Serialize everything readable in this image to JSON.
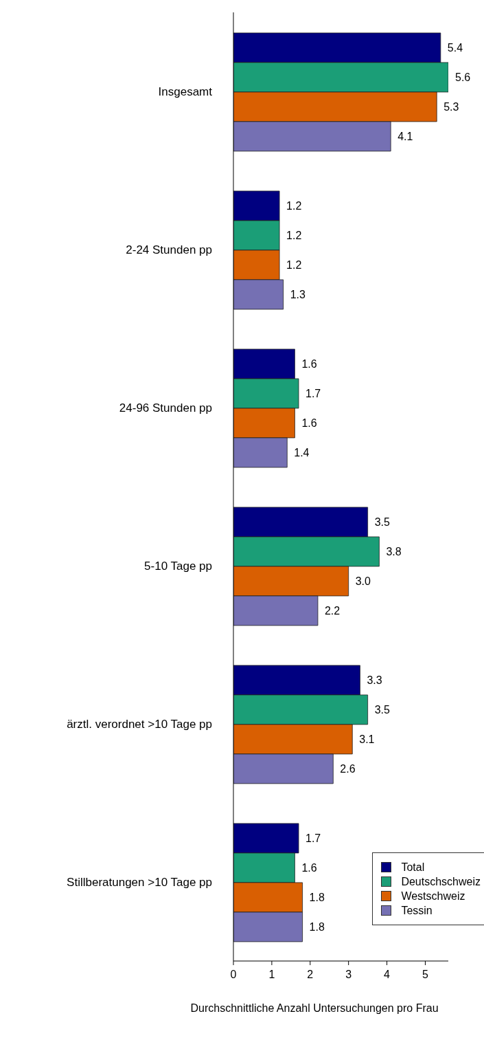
{
  "chart_data": {
    "type": "bar",
    "orientation": "horizontal",
    "xlabel": "Durchschnittliche Anzahl Untersuchungen pro Frau",
    "categories": [
      "Insgesamt",
      "2-24 Stunden pp",
      "24-96 Stunden pp",
      "5-10 Tage pp",
      "ärztl. verordnet >10 Tage pp",
      "Stillberatungen >10 Tage pp"
    ],
    "series": [
      {
        "name": "Total",
        "color": "#000080",
        "values": [
          5.4,
          1.2,
          1.6,
          3.5,
          3.3,
          1.7
        ],
        "value_labels": [
          "5.4",
          "1.2",
          "1.6",
          "3.5",
          "3.3",
          "1.7"
        ]
      },
      {
        "name": "Deutschschweiz",
        "color": "#1b9e77",
        "values": [
          5.6,
          1.2,
          1.7,
          3.8,
          3.5,
          1.6
        ],
        "value_labels": [
          "5.6",
          "1.2",
          "1.7",
          "3.8",
          "3.5",
          "1.6"
        ]
      },
      {
        "name": "Westschweiz",
        "color": "#d95f02",
        "values": [
          5.3,
          1.2,
          1.6,
          3.0,
          3.1,
          1.8
        ],
        "value_labels": [
          "5.3",
          "1.2",
          "1.6",
          "3.0",
          "3.1",
          "1.8"
        ]
      },
      {
        "name": "Tessin",
        "color": "#7570b3",
        "values": [
          4.1,
          1.3,
          1.4,
          2.2,
          2.6,
          1.8
        ],
        "value_labels": [
          "4.1",
          "1.3",
          "1.4",
          "2.2",
          "2.6",
          "1.8"
        ]
      }
    ],
    "xlim": [
      0,
      5.6
    ],
    "xticks": [
      0,
      1,
      2,
      3,
      4,
      5
    ],
    "grid": false,
    "legend": "bottom right"
  }
}
